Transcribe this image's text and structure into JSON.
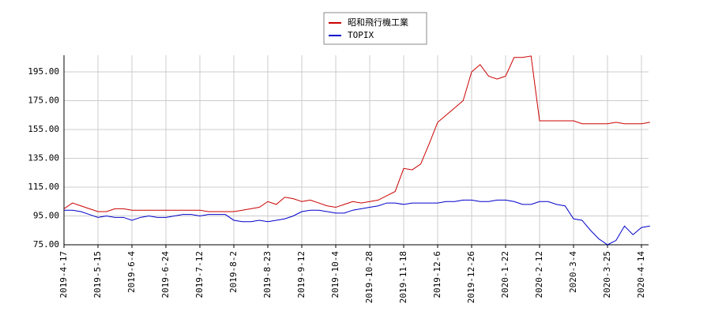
{
  "chart_data": {
    "type": "line",
    "categories": [
      "2019-4-17",
      null,
      null,
      null,
      "2019-5-15",
      null,
      null,
      null,
      "2019-6-4",
      null,
      null,
      null,
      "2019-6-24",
      null,
      null,
      null,
      "2019-7-12",
      null,
      null,
      null,
      "2019-8-2",
      null,
      null,
      null,
      "2019-8-23",
      null,
      null,
      null,
      "2019-9-12",
      null,
      null,
      null,
      "2019-10-4",
      null,
      null,
      null,
      "2019-10-28",
      null,
      null,
      null,
      "2019-11-18",
      null,
      null,
      null,
      "2019-12-6",
      null,
      null,
      null,
      "2019-12-26",
      null,
      null,
      null,
      "2020-1-22",
      null,
      null,
      null,
      "2020-2-12",
      null,
      null,
      null,
      "2020-3-4",
      null,
      null,
      null,
      "2020-3-25",
      null,
      null,
      null,
      "2020-4-14",
      null
    ],
    "series": [
      {
        "name": "昭和飛行機工業",
        "color": "#cc0000",
        "values": [
          100,
          104,
          102,
          100,
          98,
          98,
          100,
          100,
          99,
          99,
          99,
          99,
          99,
          99,
          99,
          99,
          99,
          98,
          98,
          98,
          98,
          99,
          100,
          101,
          105,
          103,
          108,
          107,
          105,
          106,
          104,
          102,
          101,
          103,
          105,
          104,
          105,
          106,
          109,
          112,
          128,
          127,
          131,
          145,
          160,
          165,
          170,
          175,
          195,
          200,
          192,
          190,
          192,
          205,
          205,
          206,
          161,
          161,
          161,
          161,
          161,
          159,
          159,
          159,
          159,
          160,
          159,
          159,
          159,
          160
        ]
      },
      {
        "name": "TOPIX",
        "color": "#0000cc",
        "values": [
          99,
          99,
          98,
          96,
          94,
          95,
          94,
          94,
          92,
          94,
          95,
          94,
          94,
          95,
          96,
          96,
          95,
          96,
          96,
          96,
          92,
          91,
          91,
          92,
          91,
          92,
          93,
          95,
          98,
          99,
          99,
          98,
          97,
          97,
          99,
          100,
          101,
          102,
          104,
          104,
          103,
          104,
          104,
          104,
          104,
          105,
          105,
          106,
          106,
          105,
          105,
          106,
          106,
          105,
          103,
          103,
          105,
          105,
          103,
          102,
          93,
          92,
          85,
          79,
          75,
          78,
          88,
          82,
          87,
          88
        ]
      }
    ],
    "ylim": [
      75,
      206.5
    ],
    "yticks": [
      {
        "value": 75,
        "label": "75.00"
      },
      {
        "value": 95,
        "label": "95.00"
      },
      {
        "value": 115,
        "label": "115.00"
      },
      {
        "value": 135,
        "label": "135.00"
      },
      {
        "value": 155,
        "label": "155.00"
      },
      {
        "value": 175,
        "label": "175.00"
      },
      {
        "value": 195,
        "label": "195.00"
      }
    ],
    "grid": true
  }
}
